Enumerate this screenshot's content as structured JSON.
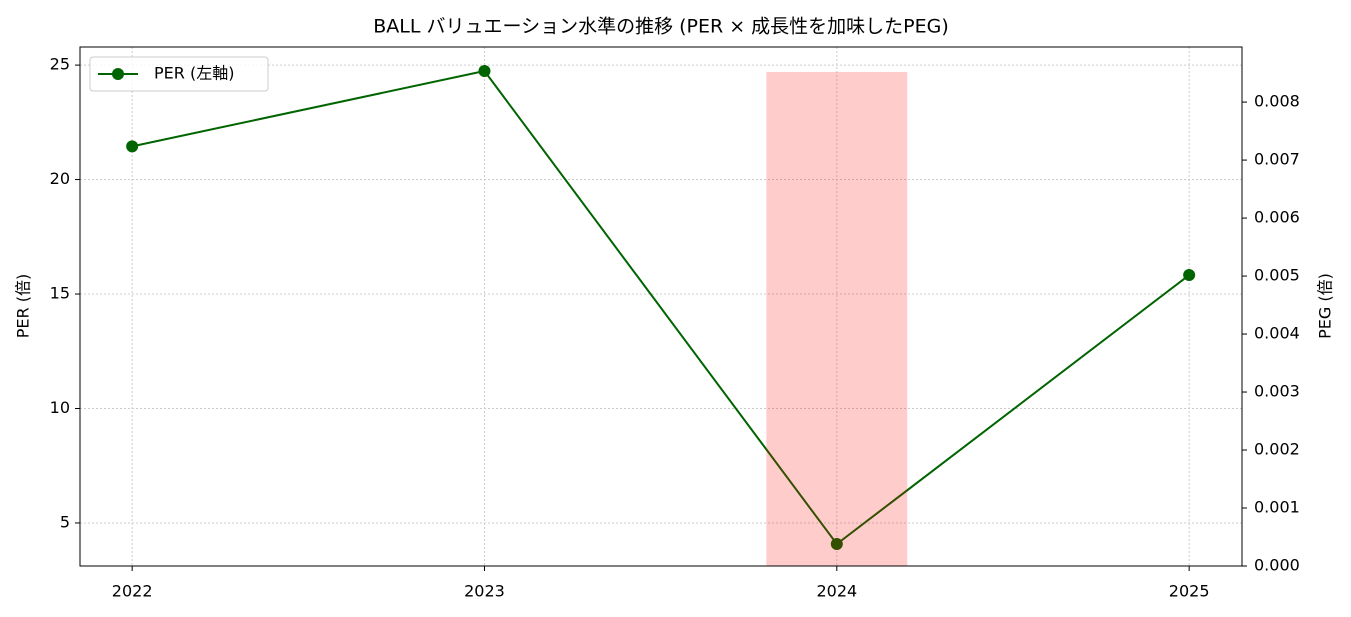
{
  "chart_data": {
    "type": "line",
    "title": "BALL バリュエーション水準の推移 (PER × 成長性を加味したPEG)",
    "y_label": "PER (倍)",
    "y2_label": "PEG (倍)",
    "x": [
      2022,
      2023,
      2024,
      2025
    ],
    "xlim": [
      2021.852,
      2025.15
    ],
    "xticks": [
      2022,
      2023,
      2024,
      2025
    ],
    "ylim": [
      3.12,
      25.79
    ],
    "yticks": [
      5,
      10,
      15,
      20,
      25
    ],
    "y2lim": [
      0,
      0.00895
    ],
    "y2ticks": [
      {
        "value": 0,
        "label": "0.000"
      },
      {
        "value": 0.001,
        "label": "0.001"
      },
      {
        "value": 0.002,
        "label": "0.002"
      },
      {
        "value": 0.003,
        "label": "0.003"
      },
      {
        "value": 0.004,
        "label": "0.004"
      },
      {
        "value": 0.005,
        "label": "0.005"
      },
      {
        "value": 0.006,
        "label": "0.006"
      },
      {
        "value": 0.007,
        "label": "0.007"
      },
      {
        "value": 0.008,
        "label": "0.008"
      }
    ],
    "grid": true,
    "legend": "upper left",
    "series": [
      {
        "name": "PER (左軸)",
        "color": "#006400",
        "values": [
          21.45,
          24.74,
          4.08,
          15.83
        ]
      },
      {
        "type": "bar",
        "axis": "y2",
        "color": "#ff0000",
        "values": [
          null,
          null,
          0.00852,
          null
        ]
      }
    ]
  }
}
